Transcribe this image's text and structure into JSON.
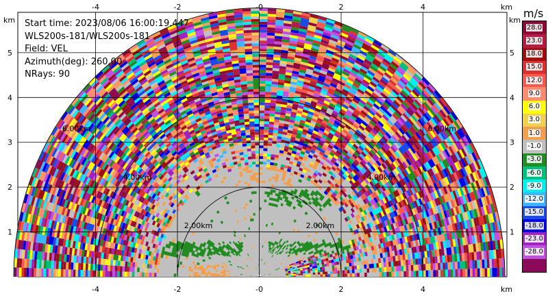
{
  "info": {
    "start_time": "Start time: 2023/08/06 16:00:19.447",
    "instrument": "WLS200s-181/WLS200s-181",
    "field": "Field: VEL",
    "azimuth": "Azimuth(deg): 260.00",
    "nrays": "NRays: 90"
  },
  "axis": {
    "unit": "km",
    "x_ticks": [
      "-4",
      "-2",
      "-0",
      "2",
      "4"
    ],
    "y_ticks": [
      "1",
      "2",
      "3",
      "4",
      "5"
    ],
    "x_range": [
      -5.9,
      6.05
    ],
    "y_range": [
      0,
      5.9
    ]
  },
  "rings": [
    {
      "radius": 2,
      "label": "2.00km"
    },
    {
      "radius": 4,
      "label": "4.00km"
    },
    {
      "radius": 6,
      "label": "6.00km"
    }
  ],
  "colorbar": {
    "unit": "m/s",
    "ticks": [
      "28.0",
      "23.0",
      "18.0",
      "15.0",
      "12.0",
      "9.0",
      "6.0",
      "3.0",
      "1.0",
      "-1.0",
      "-3.0",
      "-6.0",
      "-9.0",
      "-12.0",
      "-15.0",
      "-18.0",
      "-23.0",
      "-28.0"
    ],
    "colors": [
      "#8c0a3a",
      "#b51c44",
      "#9c1010",
      "#dd3030",
      "#f55a50",
      "#ff8c70",
      "#ffff00",
      "#f0d050",
      "#f0a050",
      "#c0c0c0",
      "#228b22",
      "#00c080",
      "#00f0f0",
      "#3cb4ff",
      "#1b4be6",
      "#0000e0",
      "#a020c0",
      "#c050e0",
      "#8c0a5a"
    ]
  }
}
